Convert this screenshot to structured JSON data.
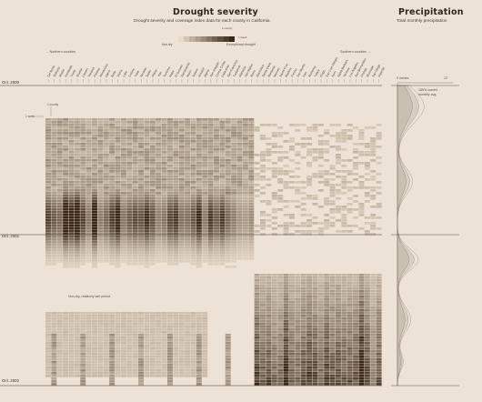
{
  "header": {
    "drought_title": "Drought severity",
    "drought_subtitle": "Drought severity and coverage index data for each county in California",
    "precip_title": "Precipitation",
    "precip_subtitle": "Total monthly precipitation"
  },
  "legend": {
    "low_label": "Not dry",
    "high_label": "Exceptional drought",
    "county_label": "1 county",
    "week_label": "1 week"
  },
  "annotations": {
    "northern": "Northern counties",
    "southern": "Southern counties",
    "key_county": "1 county",
    "key_week": "1 week",
    "wet_note": "Non-dry, relatively wet period",
    "precip_note": "185% current monthly avg."
  },
  "precip_axis": {
    "label_left": "0 inches",
    "label_right": "12"
  },
  "colors": {
    "background": "#ece3d6",
    "dry_low": "#e6d9c6",
    "dry_high": "#3a2718",
    "precip_fill": "#c9bfb2"
  },
  "chart_data": [
    {
      "type": "heatmap",
      "title": "Drought severity",
      "subtitle": "Drought severity and coverage index data for each county in California",
      "x_order_note": "Northern counties to Southern counties",
      "counties": [
        "Del Norte",
        "Siskiyou",
        "Modoc",
        "Humboldt",
        "Trinity",
        "Shasta",
        "Lassen",
        "Tehama",
        "Plumas",
        "Mendocino",
        "Glenn",
        "Butte",
        "Sierra",
        "Lake",
        "Colusa",
        "Yuba",
        "Nevada",
        "Sutter",
        "Placer",
        "Yolo",
        "Sonoma",
        "Napa",
        "El Dorado",
        "Sacramento",
        "Marin",
        "Solano",
        "Amador",
        "Alpine",
        "San Joaquin",
        "Contra Costa",
        "Calaveras",
        "San Francisco",
        "Tuolumne",
        "Alameda",
        "San Mateo",
        "Mono",
        "Stanislaus",
        "Santa Clara",
        "Mariposa",
        "Merced",
        "Santa Cruz",
        "Madera",
        "Fresno",
        "San Benito",
        "Inyo",
        "Monterey",
        "Tulare",
        "Kings",
        "San Luis Obispo",
        "Kern",
        "Santa Barbara",
        "Ventura",
        "Los Angeles",
        "San Bernardino",
        "Orange",
        "Riverside",
        "San Diego",
        "Imperial"
      ],
      "dates": [
        "Oct. 2000",
        "Oct. 2001",
        "Oct. 2002"
      ],
      "periods": [
        {
          "county_range": [
            0,
            36
          ],
          "start": 0.1,
          "end": 0.36,
          "max": 0.35
        },
        {
          "county_range": [
            0,
            36
          ],
          "start": 0.36,
          "end": 0.62,
          "max": 0.95
        },
        {
          "county_range": [
            36,
            58
          ],
          "start": 0.55,
          "end": 1.0,
          "max": 0.9
        }
      ],
      "value_range": [
        0,
        500
      ],
      "legend": [
        "Not dry",
        "Exceptional drought"
      ]
    },
    {
      "type": "area",
      "title": "Precipitation",
      "subtitle": "Total monthly precipitation",
      "xlabel": "inches",
      "xlim": [
        0,
        12
      ],
      "dates": [
        "Oct. 2000",
        "Oct. 2001",
        "Oct. 2002"
      ],
      "max_annotation": "185% current monthly avg."
    }
  ]
}
